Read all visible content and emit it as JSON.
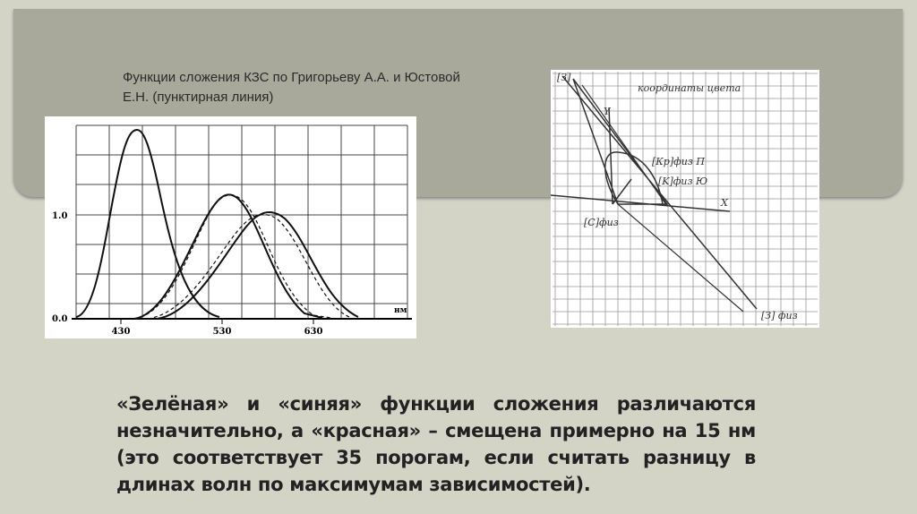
{
  "title": {
    "lines": [
      "Функции сложения КЗС по Григорьеву А.А. и Юстовой",
      "Е.Н.  (пунктирная линия)"
    ]
  },
  "figure_left": {
    "y_labels": [
      "1.0",
      "0.0"
    ],
    "x_labels": [
      "430",
      "530",
      "630"
    ],
    "x_unit": "нм"
  },
  "figure_right": {
    "labels": [
      "[З]",
      "координаты цвета",
      "Y",
      "X",
      "[Кр]физ П",
      "[K]физ Ю",
      "[C]физ",
      "[З] физ"
    ]
  },
  "body": {
    "text": "«Зелёная» и «синяя» функции сложения различаются незначительно, а «красная» – смещена примерно на 15 нм (это соответствует 35 порогам, если считать разницу в длинах волн по максимумам зависимостей)."
  }
}
